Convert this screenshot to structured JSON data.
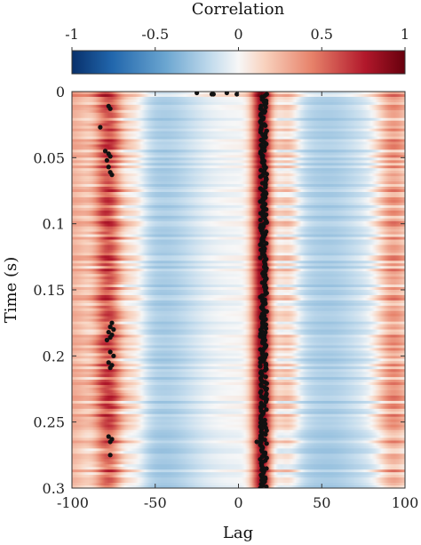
{
  "chart_data": {
    "type": "heatmap",
    "title": "",
    "xlabel": "Lag",
    "ylabel": "Time (s)",
    "xlim": [
      -100,
      100
    ],
    "ylim": [
      0,
      0.3
    ],
    "y_direction": "reversed",
    "x_ticks": [
      -100,
      -50,
      0,
      50,
      100
    ],
    "x_tick_labels": [
      "-100",
      "-50",
      "0",
      "50",
      "100"
    ],
    "y_ticks": [
      0,
      0.05,
      0.1,
      0.15,
      0.2,
      0.25,
      0.3
    ],
    "y_tick_labels": [
      "0",
      "0.05",
      "0.1",
      "0.15",
      "0.2",
      "0.25",
      "0.3"
    ],
    "colorbar": {
      "label": "Correlation",
      "range": [
        -1,
        1
      ],
      "ticks": [
        -1,
        -0.5,
        0,
        0.5,
        1
      ],
      "tick_labels": [
        "-1",
        "-0.5",
        "0",
        "0.5",
        "1"
      ],
      "colormap": "red-blue diverging",
      "colors": {
        "neg_extreme": "#08306b",
        "neg": "#4a90c8",
        "mid": "#f7f7f7",
        "pos": "#e7826a",
        "pos_extreme": "#67000d"
      }
    },
    "dominant_bands_by_lag": [
      {
        "center": -78,
        "corr": 0.55
      },
      {
        "center": -45,
        "corr": -0.2
      },
      {
        "center": 14,
        "corr": 0.9
      },
      {
        "center": 53,
        "corr": -0.2
      }
    ],
    "peak_markers": [
      {
        "lag": -25,
        "time": 0.001
      },
      {
        "lag": -16,
        "time": 0.002
      },
      {
        "lag": -15,
        "time": 0.002
      },
      {
        "lag": -7,
        "time": 0.001
      },
      {
        "lag": -1,
        "time": 0.002
      },
      {
        "lag": -78,
        "time": 0.011
      },
      {
        "lag": -77,
        "time": 0.013
      },
      {
        "lag": -83,
        "time": 0.027
      },
      {
        "lag": -80,
        "time": 0.045
      },
      {
        "lag": -78,
        "time": 0.047
      },
      {
        "lag": -77,
        "time": 0.049
      },
      {
        "lag": -79,
        "time": 0.052
      },
      {
        "lag": -78,
        "time": 0.057
      },
      {
        "lag": -77,
        "time": 0.061
      },
      {
        "lag": -76,
        "time": 0.063
      },
      {
        "lag": -76,
        "time": 0.175
      },
      {
        "lag": -77,
        "time": 0.178
      },
      {
        "lag": -75,
        "time": 0.18
      },
      {
        "lag": -78,
        "time": 0.182
      },
      {
        "lag": -76,
        "time": 0.184
      },
      {
        "lag": -77,
        "time": 0.186
      },
      {
        "lag": -79,
        "time": 0.188
      },
      {
        "lag": -77,
        "time": 0.197
      },
      {
        "lag": -75,
        "time": 0.2
      },
      {
        "lag": -78,
        "time": 0.205
      },
      {
        "lag": -76,
        "time": 0.207
      },
      {
        "lag": -77,
        "time": 0.209
      },
      {
        "lag": -78,
        "time": 0.261
      },
      {
        "lag": -76,
        "time": 0.263
      },
      {
        "lag": -77,
        "time": 0.265
      },
      {
        "lag": -77,
        "time": 0.275
      },
      {
        "lag": 11,
        "time": 0.265
      },
      {
        "lag": 17,
        "time": 0.002
      },
      {
        "lag": 16,
        "time": 0.003
      }
    ],
    "ridge_markers": {
      "lag_range": [
        13,
        17
      ],
      "time_range": [
        0.004,
        0.3
      ],
      "count": 300
    }
  }
}
